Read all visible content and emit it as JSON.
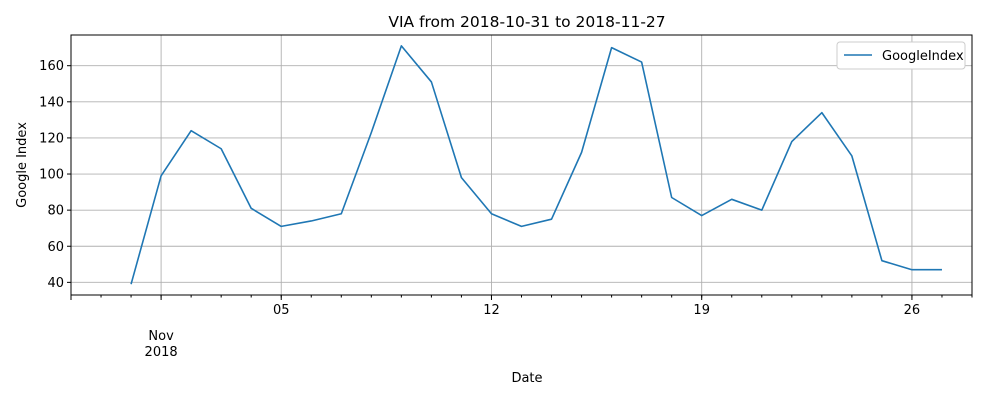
{
  "chart_data": {
    "type": "line",
    "title": "VIA from 2018-10-31 to 2018-11-27",
    "xlabel": "Date",
    "ylabel": "Google Index",
    "xlim": [
      "2018-10-29",
      "2018-11-28"
    ],
    "ylim": [
      33,
      177
    ],
    "grid": true,
    "legend_position": "top-right",
    "x_tick_labels": [
      {
        "date": "2018-11-01",
        "lines": [
          "Nov",
          "2018"
        ]
      },
      {
        "date": "2018-11-05",
        "lines": [
          "05"
        ]
      },
      {
        "date": "2018-11-12",
        "lines": [
          "12"
        ]
      },
      {
        "date": "2018-11-19",
        "lines": [
          "19"
        ]
      },
      {
        "date": "2018-11-26",
        "lines": [
          "26"
        ]
      }
    ],
    "y_ticks": [
      40,
      60,
      80,
      100,
      120,
      140,
      160
    ],
    "x": [
      "2018-10-31",
      "2018-11-01",
      "2018-11-02",
      "2018-11-03",
      "2018-11-04",
      "2018-11-05",
      "2018-11-06",
      "2018-11-07",
      "2018-11-08",
      "2018-11-09",
      "2018-11-10",
      "2018-11-11",
      "2018-11-12",
      "2018-11-13",
      "2018-11-14",
      "2018-11-15",
      "2018-11-16",
      "2018-11-17",
      "2018-11-18",
      "2018-11-19",
      "2018-11-20",
      "2018-11-21",
      "2018-11-22",
      "2018-11-23",
      "2018-11-24",
      "2018-11-25",
      "2018-11-26",
      "2018-11-27"
    ],
    "series": [
      {
        "name": "GoogleIndex",
        "color": "#1f77b4",
        "values": [
          39,
          99,
          124,
          114,
          81,
          71,
          74,
          78,
          123,
          171,
          151,
          98,
          78,
          71,
          75,
          112,
          170,
          162,
          87,
          77,
          86,
          80,
          118,
          134,
          110,
          52,
          47,
          47
        ]
      }
    ]
  }
}
